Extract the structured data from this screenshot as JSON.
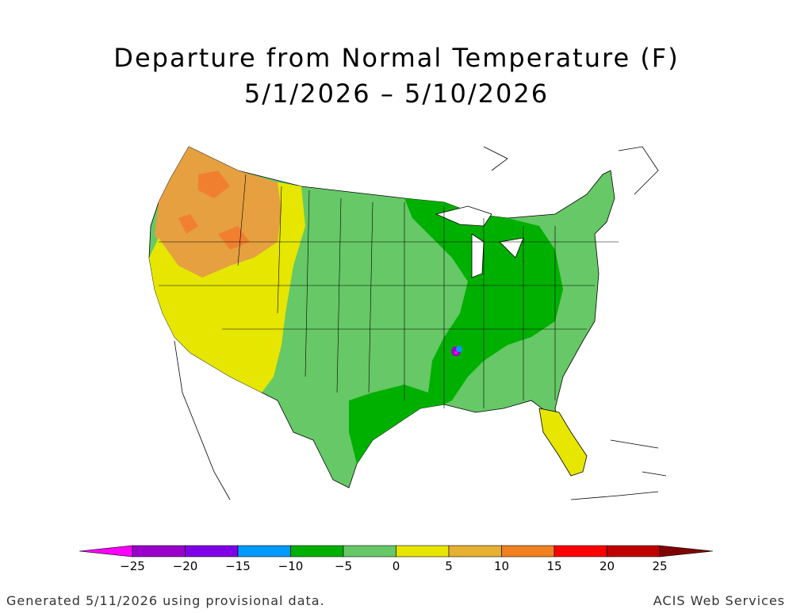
{
  "title": {
    "line1": "Departure from Normal Temperature (F)",
    "line2": "5/1/2026 – 5/10/2026"
  },
  "legend": {
    "bins": [
      {
        "color": "#ff00ff"
      },
      {
        "color": "#9900cc"
      },
      {
        "color": "#7f00e8"
      },
      {
        "color": "#0099ff"
      },
      {
        "color": "#00b000"
      },
      {
        "color": "#66c866"
      },
      {
        "color": "#e6e600"
      },
      {
        "color": "#e6b030"
      },
      {
        "color": "#f08020"
      },
      {
        "color": "#ff0000"
      },
      {
        "color": "#c00000"
      },
      {
        "color": "#800000"
      }
    ],
    "tick_labels": [
      "−25",
      "−20",
      "−15",
      "−10",
      "−5",
      "0",
      "5",
      "10",
      "15",
      "20",
      "25"
    ]
  },
  "map_colors": {
    "orange": "#e6a040",
    "dark_orange": "#f08030",
    "yellow": "#e6e600",
    "light_green": "#66c866",
    "dark_green": "#00b000",
    "blue": "#0099ff",
    "purple": "#9900cc",
    "magenta": "#ff00ff"
  },
  "footer": {
    "left": "Generated 5/11/2026 using provisional data.",
    "right": "ACIS Web Services"
  }
}
